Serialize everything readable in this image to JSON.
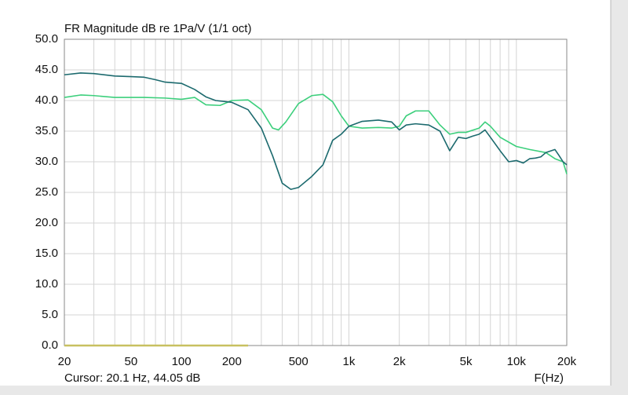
{
  "chart_data": {
    "type": "line",
    "title": "FR Magnitude dB re 1Pa/V (1/1 oct)",
    "cursor": "Cursor: 20.1 Hz, 44.05 dB",
    "x_label": "F(Hz)",
    "log_x": true,
    "grid": true,
    "xlim": [
      20,
      20000
    ],
    "ylim": [
      0,
      50
    ],
    "xticks": [
      20,
      50,
      100,
      200,
      500,
      {
        "value": 1000,
        "label": "1k"
      },
      {
        "value": 2000,
        "label": "2k"
      },
      {
        "value": 5000,
        "label": "5k"
      },
      {
        "value": 10000,
        "label": "10k"
      },
      {
        "value": 20000,
        "label": "20k"
      }
    ],
    "x_minor_grid": [
      30,
      40,
      60,
      70,
      80,
      90,
      300,
      400,
      600,
      700,
      800,
      900,
      3000,
      4000,
      6000,
      7000,
      8000,
      9000
    ],
    "yticks": [
      {
        "value": 0,
        "label": "0.0"
      },
      {
        "value": 5,
        "label": "5.0"
      },
      {
        "value": 10,
        "label": "10.0"
      },
      {
        "value": 15,
        "label": "15.0"
      },
      {
        "value": 20,
        "label": "20.0"
      },
      {
        "value": 25,
        "label": "25.0"
      },
      {
        "value": 30,
        "label": "30.0"
      },
      {
        "value": 35,
        "label": "35.0"
      },
      {
        "value": 40,
        "label": "40.0"
      },
      {
        "value": 45,
        "label": "45.0"
      },
      {
        "value": 50,
        "label": "50.0"
      }
    ],
    "series": [
      {
        "color": "#c8c060",
        "x": [
          20,
          250
        ],
        "values": [
          0,
          0
        ]
      },
      {
        "color": "#3ccf7c",
        "x": [
          20,
          25,
          30,
          40,
          60,
          80,
          100,
          120,
          140,
          170,
          200,
          250,
          300,
          350,
          380,
          420,
          500,
          600,
          700,
          800,
          900,
          1000,
          1200,
          1500,
          1800,
          2000,
          2200,
          2500,
          3000,
          3500,
          4000,
          4500,
          5000,
          6000,
          6500,
          7000,
          8000,
          10000,
          12000,
          15000,
          17000,
          19000,
          20000
        ],
        "values": [
          40.5,
          40.9,
          40.8,
          40.5,
          40.5,
          40.4,
          40.2,
          40.5,
          39.3,
          39.2,
          40.0,
          40.1,
          38.5,
          35.5,
          35.2,
          36.5,
          39.5,
          40.8,
          41.0,
          39.8,
          37.5,
          35.8,
          35.5,
          35.6,
          35.5,
          35.8,
          37.5,
          38.3,
          38.3,
          36.0,
          34.5,
          34.8,
          34.8,
          35.5,
          36.5,
          35.8,
          34.0,
          32.5,
          32.0,
          31.5,
          30.5,
          30.0,
          28.0
        ]
      },
      {
        "color": "#1c6a6e",
        "x": [
          20,
          25,
          30,
          40,
          50,
          60,
          70,
          80,
          100,
          120,
          140,
          160,
          200,
          250,
          300,
          350,
          400,
          450,
          500,
          600,
          700,
          800,
          900,
          1000,
          1200,
          1500,
          1800,
          2000,
          2200,
          2500,
          3000,
          3500,
          4000,
          4500,
          5000,
          5500,
          6000,
          6500,
          7000,
          8000,
          9000,
          10000,
          11000,
          12000,
          13000,
          14000,
          15000,
          17000,
          18000,
          19000,
          20000
        ],
        "values": [
          44.2,
          44.5,
          44.4,
          44.0,
          43.9,
          43.8,
          43.4,
          43.0,
          42.8,
          41.8,
          40.6,
          40.0,
          39.7,
          38.5,
          35.5,
          31.0,
          26.5,
          25.5,
          25.8,
          27.6,
          29.5,
          33.5,
          34.5,
          35.8,
          36.6,
          36.8,
          36.5,
          35.2,
          36.0,
          36.2,
          36.0,
          35.0,
          31.8,
          34.0,
          33.8,
          34.2,
          34.5,
          35.2,
          34.0,
          31.8,
          30.0,
          30.2,
          29.8,
          30.5,
          30.6,
          30.8,
          31.5,
          32.0,
          31.0,
          30.0,
          29.5
        ]
      }
    ]
  }
}
